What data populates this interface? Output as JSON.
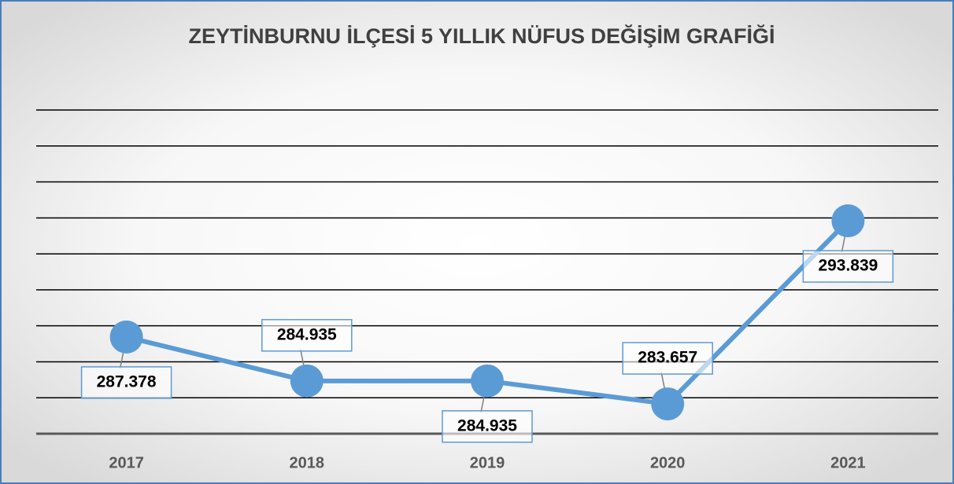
{
  "chart_data": {
    "type": "line",
    "title": "ZEYTİNBURNU İLÇESİ 5 YILLIK NÜFUS DEĞİŞİM GRAFİĞİ",
    "categories": [
      "2017",
      "2018",
      "2019",
      "2020",
      "2021"
    ],
    "values": [
      287378,
      284935,
      284935,
      283657,
      293839
    ],
    "value_labels": [
      "287.378",
      "284.935",
      "284.935",
      "283.657",
      "293.839"
    ],
    "color": "#5b9bd5",
    "ylim": [
      282000,
      300000
    ],
    "yticks": [
      282000,
      284000,
      286000,
      288000,
      290000,
      292000,
      294000,
      296000,
      298000,
      300000
    ],
    "grid": true
  }
}
